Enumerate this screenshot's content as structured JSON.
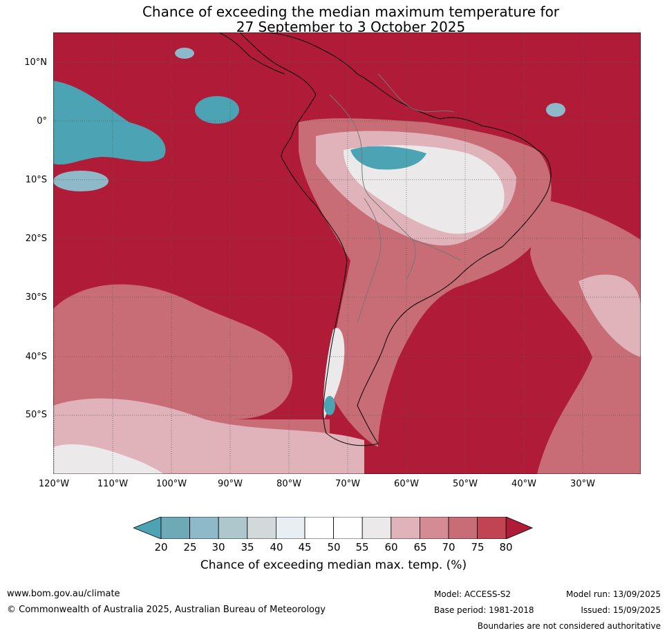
{
  "title_line1": "Chance of exceeding the median maximum temperature for",
  "title_line2": "27 September to 3 October 2025",
  "lat_ticks": [
    "10°N",
    "0°",
    "10°S",
    "20°S",
    "30°S",
    "40°S",
    "50°S"
  ],
  "lon_ticks": [
    "120°W",
    "110°W",
    "100°W",
    "90°W",
    "80°W",
    "70°W",
    "60°W",
    "50°W",
    "40°W",
    "30°W"
  ],
  "colorbar": {
    "ticks": [
      "20",
      "25",
      "30",
      "35",
      "40",
      "45",
      "50",
      "55",
      "60",
      "65",
      "70",
      "75",
      "80"
    ],
    "colors": [
      "#4ca3b4",
      "#6ea9b6",
      "#8db9c8",
      "#adc7cd",
      "#d3d8da",
      "#e8eef1",
      "#ffffff",
      "#ffffff",
      "#ebe9ea",
      "#dfb3b9",
      "#d58b94",
      "#c86c75",
      "#c04452",
      "#b01c38"
    ],
    "label": "Chance of exceeding median max. temp. (%)"
  },
  "map_colors": {
    "high": "#b01c38",
    "mid": "#c86c75",
    "light": "#dfb3b9",
    "neutral": "#ebe9ea",
    "low": "#4ca3b4",
    "lowlight": "#8db9c8"
  },
  "footer": {
    "url": "www.bom.gov.au/climate",
    "copyright": "© Commonwealth of Australia 2025, Australian Bureau of Meteorology",
    "model": "Model: ACCESS-S2",
    "base_period": "Base period: 1981-2018",
    "model_run": "Model run: 13/09/2025",
    "issued": "Issued: 15/09/2025",
    "disclaimer": "Boundaries are not considered authoritative"
  }
}
